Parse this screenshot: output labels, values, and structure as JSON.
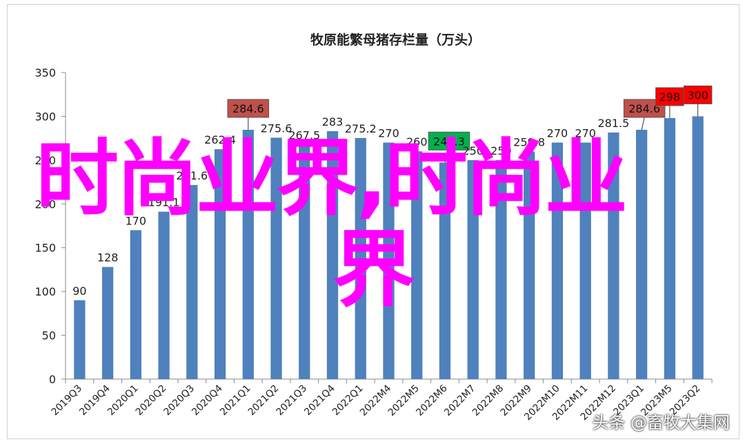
{
  "chart_data": {
    "type": "bar",
    "title": "牧原能繁母猪存栏量（万头）",
    "xlabel": "",
    "ylabel": "",
    "ylim": [
      0,
      350
    ],
    "yticks": [
      0,
      50,
      100,
      150,
      200,
      250,
      300,
      350
    ],
    "grid": false,
    "legend": "none",
    "bar_color": "#4f81bd",
    "categories": [
      "2019Q3",
      "2019Q4",
      "2020Q1",
      "2020Q2",
      "2020Q3",
      "2020Q4",
      "2021Q1",
      "2021Q2",
      "2021Q3",
      "2021Q4",
      "2022Q1",
      "2022M4",
      "2022M5",
      "2022M6",
      "2022M7",
      "2022M8",
      "2022M9",
      "2022M10",
      "2022M11",
      "2022M12",
      "2023Q1",
      "2023M5",
      "2023Q2"
    ],
    "values": [
      90,
      128,
      170,
      191.1,
      221.6,
      262.4,
      284.6,
      275.6,
      267.5,
      283,
      275.2,
      270,
      260,
      247.3,
      250,
      250,
      259.8,
      270,
      270,
      281.5,
      284.6,
      298,
      300
    ],
    "data_labels": [
      "90",
      "128",
      "170",
      "191.1",
      "221.6",
      "262.4",
      "284.6",
      "275.6",
      "267.5",
      "283",
      "275.2",
      "270",
      "260",
      "247.3",
      "250",
      "250",
      "259.8",
      "270",
      "270",
      "281.5",
      "284.6",
      "298",
      "300"
    ],
    "highlights": [
      {
        "index": 6,
        "color": "#c0504d"
      },
      {
        "index": 13,
        "color": "#00b050"
      },
      {
        "index": 20,
        "color": "#c0504d"
      },
      {
        "index": 21,
        "color": "#ff0000"
      },
      {
        "index": 22,
        "color": "#ff0000"
      }
    ]
  },
  "overlay": {
    "watermark_line1": "时尚业界,时尚业",
    "watermark_line2": "界",
    "watermark_color": "#ff00ff",
    "credit": "头条 @畜牧大集网"
  }
}
